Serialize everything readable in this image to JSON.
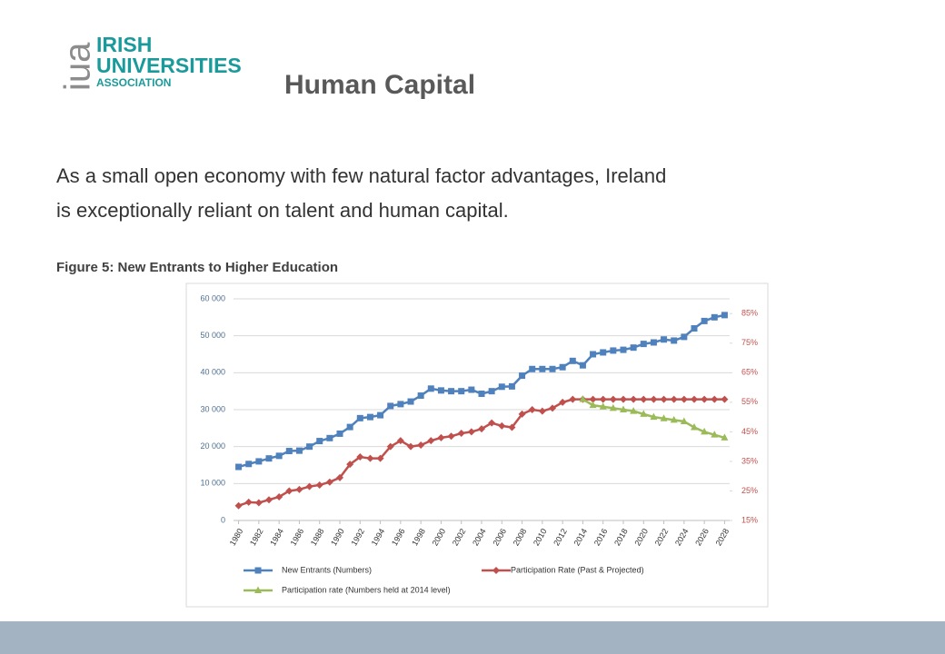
{
  "logo": {
    "mark": "iua",
    "lines": [
      "IRISH",
      "UNIVERSITIES",
      "ASSOCIATION"
    ]
  },
  "header": {
    "title": "Human Capital"
  },
  "body": {
    "lines": [
      "As a small open economy with few natural factor advantages, Ireland",
      "is exceptionally reliant on talent and human capital."
    ]
  },
  "figure": {
    "caption": "Figure 5:  New Entrants to Higher Education"
  },
  "chart_data": {
    "type": "line",
    "x": [
      1980,
      1981,
      1982,
      1983,
      1984,
      1985,
      1986,
      1987,
      1988,
      1989,
      1990,
      1991,
      1992,
      1993,
      1994,
      1995,
      1996,
      1997,
      1998,
      1999,
      2000,
      2001,
      2002,
      2003,
      2004,
      2005,
      2006,
      2007,
      2008,
      2009,
      2010,
      2011,
      2012,
      2013,
      2014,
      2015,
      2016,
      2017,
      2018,
      2019,
      2020,
      2021,
      2022,
      2023,
      2024,
      2025,
      2026,
      2027,
      2028
    ],
    "xlim": [
      1979.5,
      2028.5
    ],
    "xticks": [
      1980,
      1982,
      1984,
      1986,
      1988,
      1990,
      1992,
      1994,
      1996,
      1998,
      2000,
      2002,
      2004,
      2006,
      2008,
      2010,
      2012,
      2014,
      2016,
      2018,
      2020,
      2022,
      2024,
      2026,
      2028
    ],
    "ylim": [
      0,
      60000
    ],
    "yticks": [
      0,
      {
        "value": 10000,
        "label": "10 000"
      },
      {
        "value": 20000,
        "label": "20 000"
      },
      {
        "value": 30000,
        "label": "30 000"
      },
      {
        "value": 40000,
        "label": "40 000"
      },
      {
        "value": 50000,
        "label": "50 000"
      },
      {
        "value": 60000,
        "label": "60 000"
      }
    ],
    "y2lim": [
      15,
      90
    ],
    "y2ticks": [
      {
        "value": 15,
        "label": "15%"
      },
      {
        "value": 25,
        "label": "25%"
      },
      {
        "value": 35,
        "label": "35%"
      },
      {
        "value": 45,
        "label": "45%"
      },
      {
        "value": 55,
        "label": "55%"
      },
      {
        "value": 65,
        "label": "65%"
      },
      {
        "value": 75,
        "label": "75%"
      },
      {
        "value": 85,
        "label": "85%"
      }
    ],
    "grid": true,
    "legend": "bottom",
    "series": [
      {
        "name": "New Entrants (Numbers)",
        "color": "#4f81bd",
        "marker": "square",
        "values": [
          14500,
          15300,
          16000,
          16800,
          17500,
          18800,
          18900,
          20000,
          21500,
          22300,
          23500,
          25300,
          27700,
          28000,
          28500,
          31000,
          31500,
          32200,
          33800,
          35700,
          35200,
          35000,
          35000,
          35400,
          34300,
          35000,
          36200,
          36300,
          39200,
          41000,
          41000,
          41000,
          41500,
          43200,
          42000,
          45000,
          45500,
          46000,
          46200,
          46800,
          47800,
          48200,
          49000,
          48700,
          49700,
          52000,
          54000,
          55000,
          55600
        ]
      },
      {
        "name": "Participation Rate (Past & Projected)",
        "color": "#c0504d",
        "marker": "diamond",
        "axis": "y2",
        "values": [
          20,
          21.2,
          21,
          22,
          23,
          25,
          25.5,
          26.5,
          27,
          28,
          29.5,
          34,
          36.5,
          36,
          36,
          40,
          42,
          40,
          40.5,
          42,
          43,
          43.5,
          44.5,
          45,
          46,
          48,
          47,
          46.5,
          51,
          52.5,
          52,
          53,
          55,
          56,
          56,
          56,
          56,
          56,
          56,
          56,
          56,
          56,
          56,
          56,
          56,
          56,
          56,
          56,
          56
        ]
      },
      {
        "name": "Participation rate (Numbers held at 2014 level)",
        "color": "#9bbb59",
        "marker": "triangle",
        "axis": "y2",
        "values": [
          null,
          null,
          null,
          null,
          null,
          null,
          null,
          null,
          null,
          null,
          null,
          null,
          null,
          null,
          null,
          null,
          null,
          null,
          null,
          null,
          null,
          null,
          null,
          null,
          null,
          null,
          null,
          null,
          null,
          null,
          null,
          null,
          null,
          null,
          56,
          54,
          53.5,
          53,
          52.5,
          52,
          51,
          50,
          49.5,
          49,
          48.5,
          46.5,
          45,
          44,
          43
        ]
      }
    ]
  }
}
